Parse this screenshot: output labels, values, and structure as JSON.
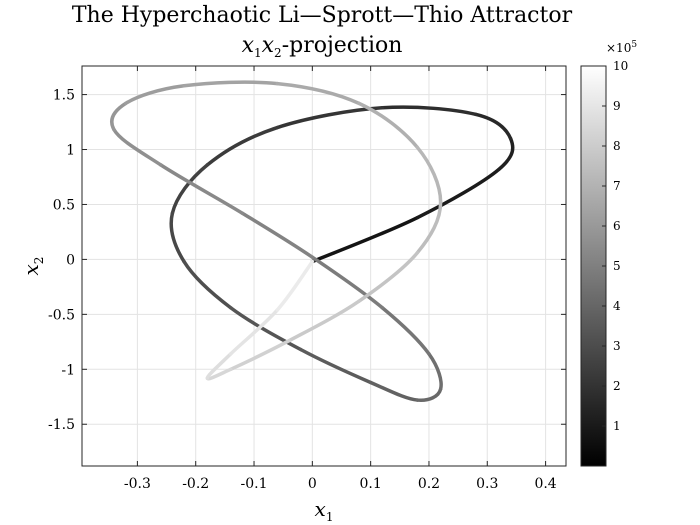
{
  "chart_data": {
    "type": "line",
    "title": "The Hyperchaotic Li—Sprott—Thio Attractor",
    "subtitle": {
      "var1": "x",
      "sub1": "1",
      "var2": "x",
      "sub2": "2",
      "suffix": "-projection"
    },
    "xlabel": {
      "var": "x",
      "sub": "1"
    },
    "ylabel": {
      "var": "x",
      "sub": "2"
    },
    "xlim": [
      -0.395,
      0.435
    ],
    "ylim": [
      -1.88,
      1.76
    ],
    "xticks": [
      -0.3,
      -0.2,
      -0.1,
      0,
      0.1,
      0.2,
      0.3,
      0.4
    ],
    "xtick_labels": [
      "-0.3",
      "-0.2",
      "-0.1",
      "0",
      "0.1",
      "0.2",
      "0.3",
      "0.4"
    ],
    "yticks": [
      -1.5,
      -1,
      -0.5,
      0,
      0.5,
      1,
      1.5
    ],
    "ytick_labels": [
      "-1.5",
      "-1",
      "-0.5",
      "0",
      "0.5",
      "1",
      "1.5"
    ],
    "grid": true,
    "colormap": "gray",
    "colorbar": {
      "lim": [
        0,
        10
      ],
      "ticks": [
        1,
        2,
        3,
        4,
        5,
        6,
        7,
        8,
        9,
        10
      ],
      "tick_labels": [
        "1",
        "2",
        "3",
        "4",
        "5",
        "6",
        "7",
        "8",
        "9",
        "10"
      ],
      "exponent_base": "×10",
      "exponent_power": "5"
    },
    "trajectory_note": "",
    "series": [
      {
        "x": [
          0.0,
          0.18,
          0.32,
          0.34,
          0.28,
          0.12,
          -0.06,
          -0.18,
          -0.24,
          -0.22,
          -0.14,
          -0.02,
          0.1,
          0.18,
          0.22,
          0.2,
          0.12,
          0.0,
          -0.12,
          -0.26,
          -0.34,
          -0.32,
          -0.22,
          -0.06,
          0.08,
          0.18,
          0.22,
          0.18,
          0.08,
          -0.04,
          -0.14,
          -0.18,
          -0.14,
          -0.06,
          0.0
        ],
        "y": [
          -0.02,
          0.38,
          0.82,
          1.1,
          1.32,
          1.38,
          1.2,
          0.86,
          0.42,
          -0.02,
          -0.44,
          -0.82,
          -1.12,
          -1.28,
          -1.18,
          -0.86,
          -0.44,
          0.02,
          0.42,
          0.86,
          1.18,
          1.42,
          1.58,
          1.6,
          1.42,
          1.02,
          0.52,
          0.06,
          -0.38,
          -0.74,
          -1.0,
          -1.08,
          -0.86,
          -0.46,
          -0.02
        ]
      }
    ]
  }
}
